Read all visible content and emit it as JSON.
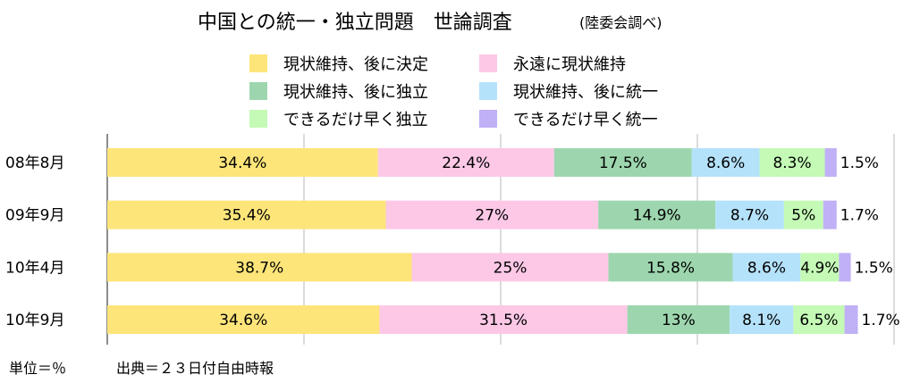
{
  "title": "中国との統一・独立問題　世論調査",
  "subtitle": "(陸委会調べ)",
  "footer": {
    "unit": "単位＝％",
    "source": "出典＝２３日付自由時報"
  },
  "chart_data": {
    "type": "bar",
    "orientation": "horizontal",
    "stacked": true,
    "title": "中国との統一・独立問題　世論調査",
    "subtitle": "(陸委会調べ)",
    "categories": [
      "08年8月",
      "09年9月",
      "10年4月",
      "10年9月"
    ],
    "xlim": [
      0,
      100
    ],
    "grid": true,
    "legend_position": "top",
    "series": [
      {
        "name": "現状維持、後に決定",
        "color": "#fde57a",
        "values": [
          34.4,
          35.4,
          38.7,
          34.6
        ],
        "labels": [
          "34.4%",
          "35.4%",
          "38.7%",
          "34.6%"
        ]
      },
      {
        "name": "永遠に現状維持",
        "color": "#fcc8e6",
        "values": [
          22.4,
          27,
          25,
          31.5
        ],
        "labels": [
          "22.4%",
          "27%",
          "25%",
          "31.5%"
        ]
      },
      {
        "name": "現状維持、後に独立",
        "color": "#9dd6ae",
        "values": [
          17.5,
          14.9,
          15.8,
          13
        ],
        "labels": [
          "17.5%",
          "14.9%",
          "15.8%",
          "13%"
        ]
      },
      {
        "name": "現状維持、後に統一",
        "color": "#b5e2fb",
        "values": [
          8.6,
          8.7,
          8.6,
          8.1
        ],
        "labels": [
          "8.6%",
          "8.7%",
          "8.6%",
          "8.1%"
        ]
      },
      {
        "name": "できるだけ早く独立",
        "color": "#c4fab6",
        "values": [
          8.3,
          5,
          4.9,
          6.5
        ],
        "labels": [
          "8.3%",
          "5%",
          "4.9%",
          "6.5%"
        ]
      },
      {
        "name": "できるだけ早く統一",
        "color": "#c0b0f5",
        "values": [
          1.5,
          1.7,
          1.5,
          1.7
        ],
        "labels": [
          "1.5%",
          "1.7%",
          "1.5%",
          "1.7%"
        ]
      }
    ]
  }
}
